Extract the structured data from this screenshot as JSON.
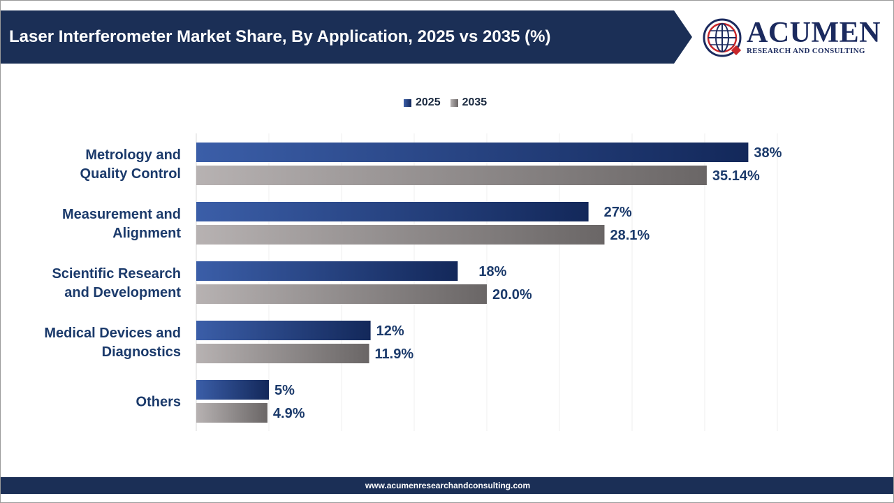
{
  "header": {
    "title": "Laser Interferometer Market Share, By Application, 2025 vs 2035 (%)"
  },
  "logo": {
    "name": "ACUMEN",
    "tagline": "RESEARCH AND CONSULTING",
    "icon": "globe-icon"
  },
  "footer": {
    "url": "www.acumenresearchandconsulting.com"
  },
  "colors": {
    "banner": "#1b2f56",
    "series_2025_start": "#3b5ea8",
    "series_2025_end": "#13285a",
    "series_2035_start": "#b7b2b2",
    "series_2035_end": "#6a6666",
    "label_text": "#1b3a6b",
    "accent_red": "#c8272b"
  },
  "chart_data": {
    "type": "bar",
    "orientation": "horizontal",
    "title": "Laser Interferometer Market Share, By Application, 2025 vs 2035 (%)",
    "categories": [
      [
        "Metrology and",
        "Quality Control"
      ],
      [
        "Measurement and",
        "Alignment"
      ],
      [
        "Scientific Research",
        "and Development"
      ],
      [
        "Medical Devices and",
        "Diagnostics"
      ],
      [
        "Others"
      ]
    ],
    "series": [
      {
        "name": "2025",
        "values": [
          38,
          27,
          18,
          12,
          5
        ],
        "labels": [
          "38%",
          "27%",
          "18%",
          "12%",
          "5%"
        ]
      },
      {
        "name": "2035",
        "values": [
          35.14,
          28.1,
          20.0,
          11.9,
          4.9
        ],
        "labels": [
          "35.14%",
          "28.1%",
          "20.0%",
          "11.9%",
          "4.9%"
        ]
      }
    ],
    "xlim": [
      0,
      40
    ],
    "grid": true,
    "legend_position": "top-center"
  }
}
